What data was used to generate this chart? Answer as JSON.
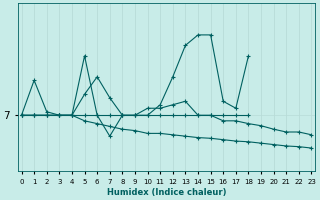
{
  "background_color": "#c8ece8",
  "line_color": "#006060",
  "grid_color": "#b8dcd8",
  "xlabel": "Humidex (Indice chaleur)",
  "xlim": [
    0,
    23
  ],
  "ylim": [
    6.2,
    8.6
  ],
  "ytick_val": 7.0,
  "ytick_label": "7",
  "x_ticks": [
    0,
    1,
    2,
    3,
    4,
    5,
    6,
    7,
    8,
    9,
    10,
    11,
    12,
    13,
    14,
    15,
    16,
    17,
    18,
    19,
    20,
    21,
    22,
    23
  ],
  "line1_x": [
    0,
    1,
    2,
    3,
    4,
    5,
    6,
    7,
    8,
    9,
    10,
    11,
    12,
    13,
    14,
    15,
    16,
    17,
    18
  ],
  "line1_y": [
    7.0,
    7.5,
    7.05,
    7.0,
    7.0,
    7.85,
    7.0,
    6.7,
    7.0,
    7.0,
    7.0,
    7.15,
    7.55,
    8.0,
    8.15,
    8.15,
    7.2,
    7.1,
    7.85
  ],
  "line2_x": [
    0,
    1,
    2,
    3,
    4,
    5,
    6,
    7,
    8,
    9,
    10,
    11,
    12,
    13,
    14,
    15,
    16,
    17,
    18,
    19,
    20,
    21,
    22,
    23
  ],
  "line2_y": [
    7.0,
    7.0,
    7.0,
    7.0,
    7.0,
    7.3,
    7.55,
    7.25,
    7.0,
    7.0,
    7.1,
    7.1,
    7.15,
    7.2,
    7.0,
    7.0,
    6.92,
    6.92,
    6.88,
    6.85,
    6.8,
    6.76,
    6.76,
    6.72
  ],
  "line3_x": [
    0,
    1,
    2,
    3,
    4,
    5,
    6,
    7,
    8,
    9,
    10,
    11,
    12,
    13,
    14,
    15,
    16,
    17,
    18,
    19,
    20,
    21,
    22,
    23
  ],
  "line3_y": [
    7.0,
    7.0,
    7.0,
    7.0,
    7.0,
    6.92,
    6.88,
    6.84,
    6.8,
    6.78,
    6.74,
    6.74,
    6.72,
    6.7,
    6.68,
    6.67,
    6.65,
    6.63,
    6.62,
    6.6,
    6.58,
    6.56,
    6.55,
    6.53
  ],
  "line4_x": [
    0,
    1,
    2,
    3,
    4,
    5,
    6,
    7,
    8,
    9,
    10,
    11,
    12,
    13,
    14,
    15,
    16,
    17,
    18
  ],
  "line4_y": [
    7.0,
    7.0,
    7.0,
    7.0,
    7.0,
    7.0,
    7.0,
    7.0,
    7.0,
    7.0,
    7.0,
    7.0,
    7.0,
    7.0,
    7.0,
    7.0,
    7.0,
    7.0,
    7.0
  ],
  "marker": "+",
  "markersize": 2.5,
  "linewidth": 0.8
}
